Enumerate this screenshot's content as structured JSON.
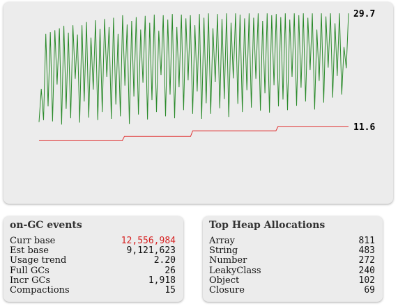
{
  "chart_data": {
    "type": "line",
    "title": "",
    "xlabel": "",
    "ylabel": "",
    "ylim": [
      0,
      31.5
    ],
    "grid": false,
    "series": [
      {
        "label": "29.7",
        "color": "#2a8a2a",
        "values": [
          12.3,
          17.6,
          12.6,
          26.4,
          14.8,
          26.7,
          12.4,
          27.0,
          18.3,
          27.3,
          11.9,
          27.7,
          14.4,
          26.6,
          12.9,
          27.8,
          19.2,
          26.3,
          12.2,
          27.8,
          15.6,
          28.3,
          13.0,
          25.8,
          17.5,
          28.6,
          12.6,
          27.2,
          13.9,
          28.8,
          19.5,
          27.5,
          12.8,
          29.0,
          15.1,
          26.4,
          13.2,
          29.4,
          18.1,
          27.9,
          12.0,
          28.5,
          16.4,
          29.1,
          13.5,
          27.1,
          18.6,
          29.3,
          12.7,
          28.2,
          15.8,
          29.5,
          13.9,
          26.9,
          19.8,
          29.4,
          13.2,
          28.7,
          16.7,
          29.6,
          12.9,
          27.5,
          17.9,
          29.5,
          14.2,
          28.9,
          19.0,
          29.4,
          13.6,
          27.8,
          17.2,
          29.6,
          12.8,
          29.0,
          15.3,
          29.7,
          13.6,
          27.3,
          18.7,
          29.6,
          14.5,
          28.8,
          16.0,
          29.7,
          13.1,
          28.2,
          19.3,
          29.7,
          15.2,
          29.5,
          13.9,
          28.9,
          17.4,
          29.7,
          14.6,
          29.0,
          19.2,
          29.7,
          14.1,
          28.5,
          16.9,
          29.7,
          13.8,
          29.4,
          18.2,
          29.6,
          14.8,
          29.1,
          15.9,
          29.7,
          14.2,
          28.7,
          19.5,
          29.7,
          14.9,
          29.4,
          17.8,
          29.7,
          15.6,
          29.0,
          20.6,
          29.7,
          14.3,
          27.1,
          18.9,
          29.7,
          15.4,
          29.2,
          21.0,
          29.7,
          16.2,
          28.1,
          19.7,
          29.7,
          16.7,
          24.3,
          20.9,
          29.7
        ]
      },
      {
        "label": "11.6",
        "color": "#e03030",
        "values": [
          9.3,
          9.3,
          9.3,
          9.3,
          9.3,
          9.3,
          9.3,
          9.3,
          9.3,
          9.3,
          9.3,
          9.3,
          9.3,
          9.3,
          9.3,
          9.3,
          9.3,
          9.3,
          9.3,
          9.3,
          9.3,
          9.3,
          9.3,
          9.3,
          9.3,
          9.3,
          9.3,
          9.3,
          9.3,
          9.3,
          9.3,
          9.3,
          9.3,
          9.3,
          9.3,
          9.3,
          9.3,
          9.3,
          9.3,
          9.3,
          10.0,
          10.0,
          10.0,
          10.0,
          10.0,
          10.0,
          10.0,
          10.0,
          10.0,
          10.0,
          10.0,
          10.0,
          10.0,
          10.0,
          10.0,
          10.0,
          10.0,
          10.0,
          10.0,
          10.0,
          10.0,
          10.0,
          10.0,
          10.0,
          10.0,
          10.0,
          10.0,
          10.0,
          10.0,
          10.0,
          10.0,
          10.0,
          10.9,
          10.9,
          10.9,
          10.9,
          10.9,
          10.9,
          10.9,
          10.9,
          10.9,
          10.9,
          10.9,
          10.9,
          10.9,
          10.9,
          10.9,
          10.9,
          10.9,
          10.9,
          10.9,
          10.9,
          10.9,
          10.9,
          10.9,
          10.9,
          10.9,
          10.9,
          10.9,
          10.9,
          10.9,
          10.9,
          10.9,
          10.9,
          10.9,
          10.9,
          10.9,
          10.9,
          10.9,
          10.9,
          10.9,
          10.9,
          11.6,
          11.6,
          11.6,
          11.6,
          11.6,
          11.6,
          11.6,
          11.6,
          11.6,
          11.6,
          11.6,
          11.6,
          11.6,
          11.6,
          11.6,
          11.6,
          11.6,
          11.6,
          11.6,
          11.6,
          11.6,
          11.6,
          11.6,
          11.6,
          11.6,
          11.6,
          11.6,
          11.6,
          11.6,
          11.6,
          11.6,
          11.6,
          11.6,
          11.6
        ]
      }
    ]
  },
  "gc_events": {
    "title": "on-GC events",
    "alert_color": "#d62020",
    "rows": [
      {
        "label": "Curr base",
        "value": "12,556,984",
        "alert": true
      },
      {
        "label": "Est base",
        "value": "9,121,623"
      },
      {
        "label": "Usage trend",
        "value": "2.20"
      },
      {
        "label": "Full GCs",
        "value": "26"
      },
      {
        "label": "Incr GCs",
        "value": "1,918"
      },
      {
        "label": "Compactions",
        "value": "15"
      }
    ]
  },
  "heap_allocations": {
    "title": "Top Heap Allocations",
    "rows": [
      {
        "label": "Array",
        "value": "811"
      },
      {
        "label": "String",
        "value": "483"
      },
      {
        "label": "Number",
        "value": "272"
      },
      {
        "label": "LeakyClass",
        "value": "240"
      },
      {
        "label": "Object",
        "value": "102"
      },
      {
        "label": "Closure",
        "value": "69"
      }
    ]
  }
}
